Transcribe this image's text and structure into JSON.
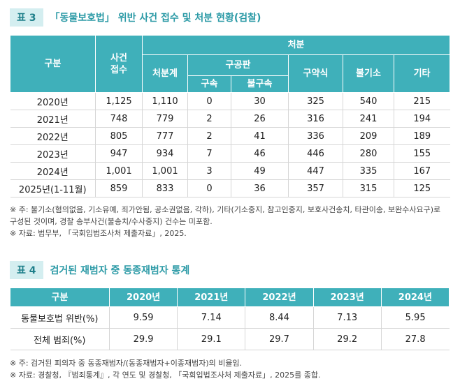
{
  "table3": {
    "label": "표 3",
    "title": "「동물보호법」 위반 사건 접수 및 처분 현황(검찰)",
    "header": {
      "category": "구분",
      "received": "사건\n접수",
      "disposition": "처분",
      "total": "처분계",
      "indictment": "구공판",
      "detained": "구속",
      "not_detained": "불구속",
      "summary": "구약식",
      "no_indictment": "불기소",
      "other": "기타"
    },
    "rows": [
      [
        "2020년",
        "1,125",
        "1,110",
        "0",
        "30",
        "325",
        "540",
        "215"
      ],
      [
        "2021년",
        "748",
        "779",
        "2",
        "26",
        "316",
        "241",
        "194"
      ],
      [
        "2022년",
        "805",
        "777",
        "2",
        "41",
        "336",
        "209",
        "189"
      ],
      [
        "2023년",
        "947",
        "934",
        "7",
        "46",
        "446",
        "280",
        "155"
      ],
      [
        "2024년",
        "1,001",
        "1,001",
        "3",
        "49",
        "447",
        "335",
        "167"
      ],
      [
        "2025년(1-11월)",
        "859",
        "833",
        "0",
        "36",
        "357",
        "315",
        "125"
      ]
    ],
    "notes": [
      "※ 주: 불기소(혐의없음, 기소유예, 죄가안됨, 공소권없음, 각하), 기타(기소중지, 참고인중지, 보호사건송치, 타관이송, 보완수사요구)로 구성된 것이며, 경찰 송부사건(불송치/수사중지) 건수는 미포함.",
      "※ 자료: 법무부, 「국회입법조사처 제출자료」, 2025."
    ]
  },
  "table4": {
    "label": "표 4",
    "title": "검거된 재범자 중 동종재범자 통계",
    "header": [
      "구분",
      "2020년",
      "2021년",
      "2022년",
      "2023년",
      "2024년"
    ],
    "rows": [
      [
        "동물보호법 위반(%)",
        "9.59",
        "7.14",
        "8.44",
        "7.13",
        "5.95"
      ],
      [
        "전체 범죄(%)",
        "29.9",
        "29.1",
        "29.7",
        "29.2",
        "27.8"
      ]
    ],
    "notes": [
      "※ 주: 검거된 피의자 중 동종재범자/(동종재범자+이종재범자)의 비율임.",
      "※ 자료: 경찰청, 『범죄통계』, 각 연도 및 경찰청, 「국회입법조사처 제출자료」, 2025를 종합."
    ]
  }
}
